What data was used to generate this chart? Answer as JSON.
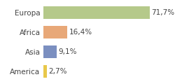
{
  "categories": [
    "America",
    "Asia",
    "Africa",
    "Europa"
  ],
  "values": [
    2.7,
    9.1,
    16.4,
    71.7
  ],
  "labels": [
    "2,7%",
    "9,1%",
    "16,4%",
    "71,7%"
  ],
  "bar_colors": [
    "#e8c84a",
    "#7b8fc0",
    "#e8a878",
    "#b5c98a"
  ],
  "background_color": "#ffffff",
  "xlim": [
    0,
    100
  ],
  "bar_height": 0.65,
  "label_fontsize": 7.5,
  "tick_fontsize": 7.5,
  "grid_color": "#d8d8d8",
  "text_color": "#444444"
}
